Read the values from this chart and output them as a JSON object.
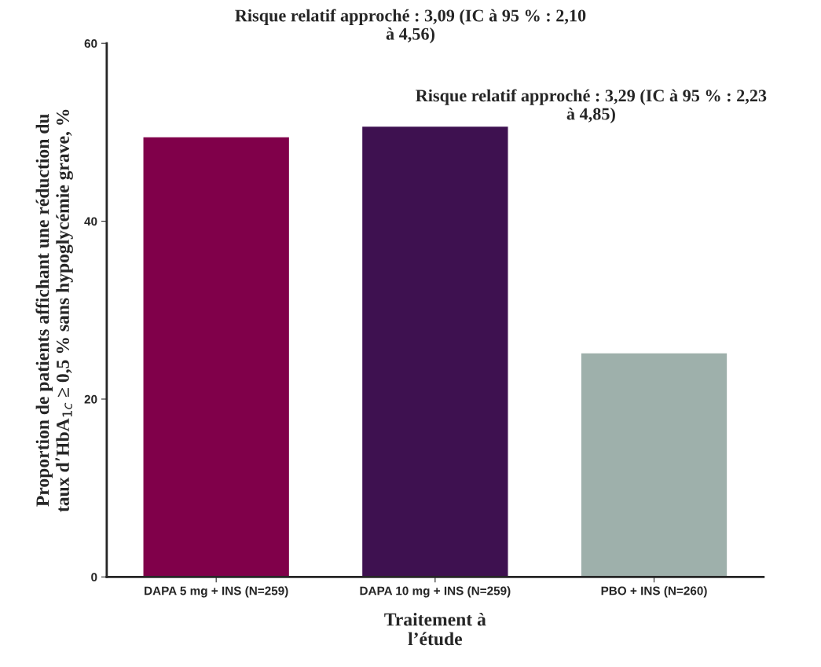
{
  "chart_data": {
    "type": "bar",
    "categories": [
      "DAPA 5 mg + INS (N=259)",
      "DAPA 10 mg + INS (N=259)",
      "PBO + INS (N=260)"
    ],
    "values": [
      49.5,
      50.7,
      25.2
    ],
    "colors": [
      "#80004a",
      "#3e1150",
      "#9eb0ab"
    ],
    "xlabel": "Traitement à\nl’étude",
    "ylabel": "Proportion de patients affichant une réduction du\ntaux d’HbA$_{1c}$ ≥ 0,5 % sans hypoglycémie grave, %",
    "ylim": [
      0,
      60
    ],
    "yticks": [
      0,
      20,
      40,
      60
    ],
    "annotations": [
      "Risque relatif approché : 3,09 (IC à 95 % : 2,10\nà 4,56)",
      "Risque relatif approché : 3,29 (IC à 95 % : 2,23\nà 4,85)"
    ]
  }
}
